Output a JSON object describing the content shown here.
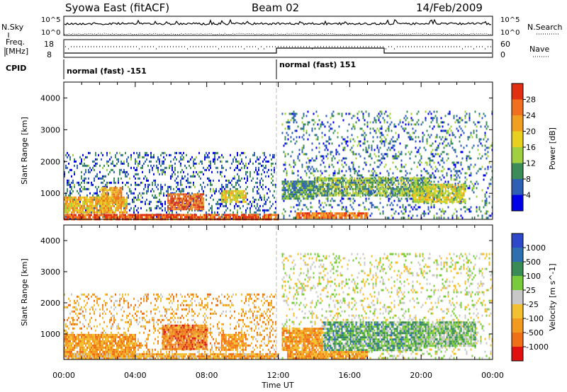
{
  "header": {
    "title": "Syowa East (fitACF)",
    "beam": "Beam 02",
    "date": "14/Feb/2009"
  },
  "summary": {
    "nsky_label": "N.Sky",
    "nsearch_label": "N.Search",
    "freq_label_line1": "Freq.",
    "freq_label_line2": "[MHz]",
    "nave_label": "Nave",
    "cpid_label": "CPID",
    "noise_left_ticks": [
      "10^5",
      "10^0"
    ],
    "noise_right_ticks": [
      "10^5",
      "10^0"
    ],
    "freq_left_ticks": [
      "18",
      "8"
    ],
    "nave_right_ticks": [
      "60",
      "0"
    ],
    "cpid_segments": [
      "normal (fast) -151",
      "normal (fast) 151"
    ]
  },
  "axes": {
    "ylabel": "Slant Range [km]",
    "xlabel": "Time UT",
    "yticks": [
      "1000",
      "2000",
      "3000",
      "4000"
    ],
    "xticks": [
      "00:00",
      "04:00",
      "08:00",
      "12:00",
      "16:00",
      "20:00",
      "00:00"
    ]
  },
  "colorbars": {
    "power": {
      "label": "Power [dB]",
      "ticks": [
        "4",
        "8",
        "12",
        "16",
        "20",
        "24",
        "28"
      ],
      "colors": [
        "#0000e6",
        "#2e5fb4",
        "#3c8c5a",
        "#a0d040",
        "#e8d020",
        "#f0a020",
        "#f07020",
        "#e03010"
      ]
    },
    "velocity": {
      "label": "Velocity [m s^-1]",
      "ticks": [
        "1000",
        "500",
        "100",
        "25",
        "-25",
        "-100",
        "-500",
        "-1000"
      ],
      "colors": [
        "#2d48c8",
        "#2e6fb0",
        "#3a8c56",
        "#7acb3c",
        "#c8c8c8",
        "#f2c030",
        "#f29a20",
        "#f07018",
        "#e01010"
      ]
    }
  },
  "chart_data": [
    {
      "type": "heatmap",
      "name": "Power",
      "xlabel": "Time UT",
      "ylabel": "Slant Range [km]",
      "xlim_hours": [
        0,
        24
      ],
      "ylim_km": [
        180,
        4500
      ],
      "zlabel": "Power [dB]",
      "zlim": [
        0,
        30
      ],
      "blobs": [
        {
          "t": [
            0.0,
            11.9
          ],
          "r": [
            200,
            2300
          ],
          "level": 1.2,
          "density": 0.25
        },
        {
          "t": [
            0.0,
            3.5
          ],
          "r": [
            400,
            900
          ],
          "level": 4.5,
          "density": 0.85
        },
        {
          "t": [
            2.0,
            3.2
          ],
          "r": [
            700,
            1200
          ],
          "level": 5.0,
          "density": 0.8
        },
        {
          "t": [
            5.8,
            7.8
          ],
          "r": [
            500,
            1000
          ],
          "level": 6.2,
          "density": 0.9
        },
        {
          "t": [
            8.8,
            10.2
          ],
          "r": [
            700,
            1100
          ],
          "level": 4.0,
          "density": 0.8
        },
        {
          "t": [
            0.0,
            12.0
          ],
          "r": [
            200,
            350
          ],
          "level": 6.5,
          "density": 0.9
        },
        {
          "t": [
            12.2,
            24.0
          ],
          "r": [
            200,
            3600
          ],
          "level": 1.5,
          "density": 0.2
        },
        {
          "t": [
            12.2,
            14.0
          ],
          "r": [
            800,
            1400
          ],
          "level": 2.0,
          "density": 0.85
        },
        {
          "t": [
            14.0,
            20.5
          ],
          "r": [
            900,
            1500
          ],
          "level": 2.5,
          "density": 0.8
        },
        {
          "t": [
            19.5,
            22.5
          ],
          "r": [
            700,
            1300
          ],
          "level": 3.5,
          "density": 0.85
        },
        {
          "t": [
            13.0,
            17.0
          ],
          "r": [
            200,
            400
          ],
          "level": 6.0,
          "density": 0.9
        }
      ]
    },
    {
      "type": "heatmap",
      "name": "Velocity",
      "xlabel": "Time UT",
      "ylabel": "Slant Range [km]",
      "xlim_hours": [
        0,
        24
      ],
      "ylim_km": [
        180,
        4500
      ],
      "zlabel": "Velocity [m s^-1]",
      "zlim": [
        -1000,
        1000
      ],
      "blobs": [
        {
          "t": [
            0.0,
            11.9
          ],
          "r": [
            200,
            2300
          ],
          "level": 5.5,
          "density": 0.25
        },
        {
          "t": [
            0.0,
            4.0
          ],
          "r": [
            300,
            1000
          ],
          "level": 6.0,
          "density": 0.85
        },
        {
          "t": [
            5.5,
            8.0
          ],
          "r": [
            500,
            1300
          ],
          "level": 6.5,
          "density": 0.9
        },
        {
          "t": [
            8.8,
            10.2
          ],
          "r": [
            500,
            1000
          ],
          "level": 6.0,
          "density": 0.8
        },
        {
          "t": [
            0.0,
            12.0
          ],
          "r": [
            200,
            380
          ],
          "level": 5.5,
          "density": 0.9
        },
        {
          "t": [
            12.2,
            24.0
          ],
          "r": [
            200,
            3600
          ],
          "level": 4.0,
          "density": 0.2
        },
        {
          "t": [
            12.2,
            14.5
          ],
          "r": [
            500,
            1200
          ],
          "level": 6.0,
          "density": 0.85
        },
        {
          "t": [
            14.5,
            20.0
          ],
          "r": [
            500,
            1400
          ],
          "level": 2.5,
          "density": 0.8
        },
        {
          "t": [
            19.5,
            23.0
          ],
          "r": [
            600,
            1400
          ],
          "level": 3.0,
          "density": 0.85
        },
        {
          "t": [
            12.5,
            17.0
          ],
          "r": [
            200,
            450
          ],
          "level": 6.0,
          "density": 0.9
        }
      ]
    }
  ]
}
